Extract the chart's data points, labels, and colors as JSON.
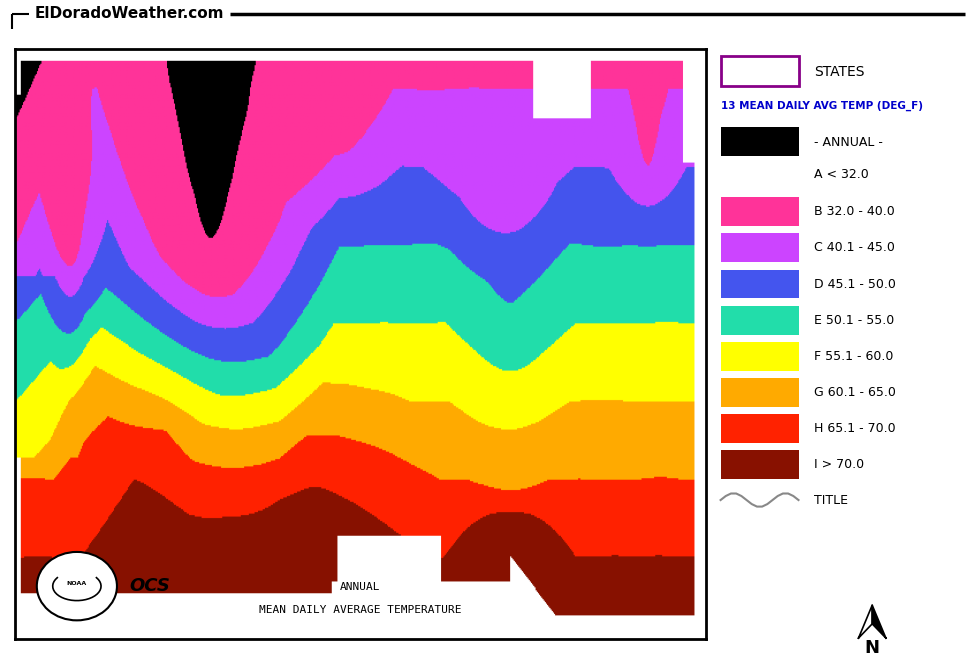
{
  "title_text": "ElDoradoWeather.com",
  "map_title1": "ANNUAL",
  "map_title2": "MEAN DAILY AVERAGE TEMPERATURE",
  "legend_header": "13 MEAN DAILY AVG TEMP (DEG_F)",
  "states_label": "STATES",
  "annual_label": "- ANNUAL -",
  "legend_items": [
    {
      "label": "A < 32.0",
      "color": null
    },
    {
      "label": "B 32.0 - 40.0",
      "color": "#FF3399"
    },
    {
      "label": "C 40.1 - 45.0",
      "color": "#CC44FF"
    },
    {
      "label": "D 45.1 - 50.0",
      "color": "#4455EE"
    },
    {
      "label": "E 50.1 - 55.0",
      "color": "#22DDAA"
    },
    {
      "label": "F 55.1 - 60.0",
      "color": "#FFFF00"
    },
    {
      "label": "G 60.1 - 65.0",
      "color": "#FFAA00"
    },
    {
      "label": "H 65.1 - 70.0",
      "color": "#FF2200"
    },
    {
      "label": "I > 70.0",
      "color": "#881100"
    }
  ],
  "bg_color": "#FFFFFF",
  "border_color": "#000000",
  "states_box_color": "#880088",
  "legend_header_color": "#0000CC",
  "font_size_legend": 9
}
